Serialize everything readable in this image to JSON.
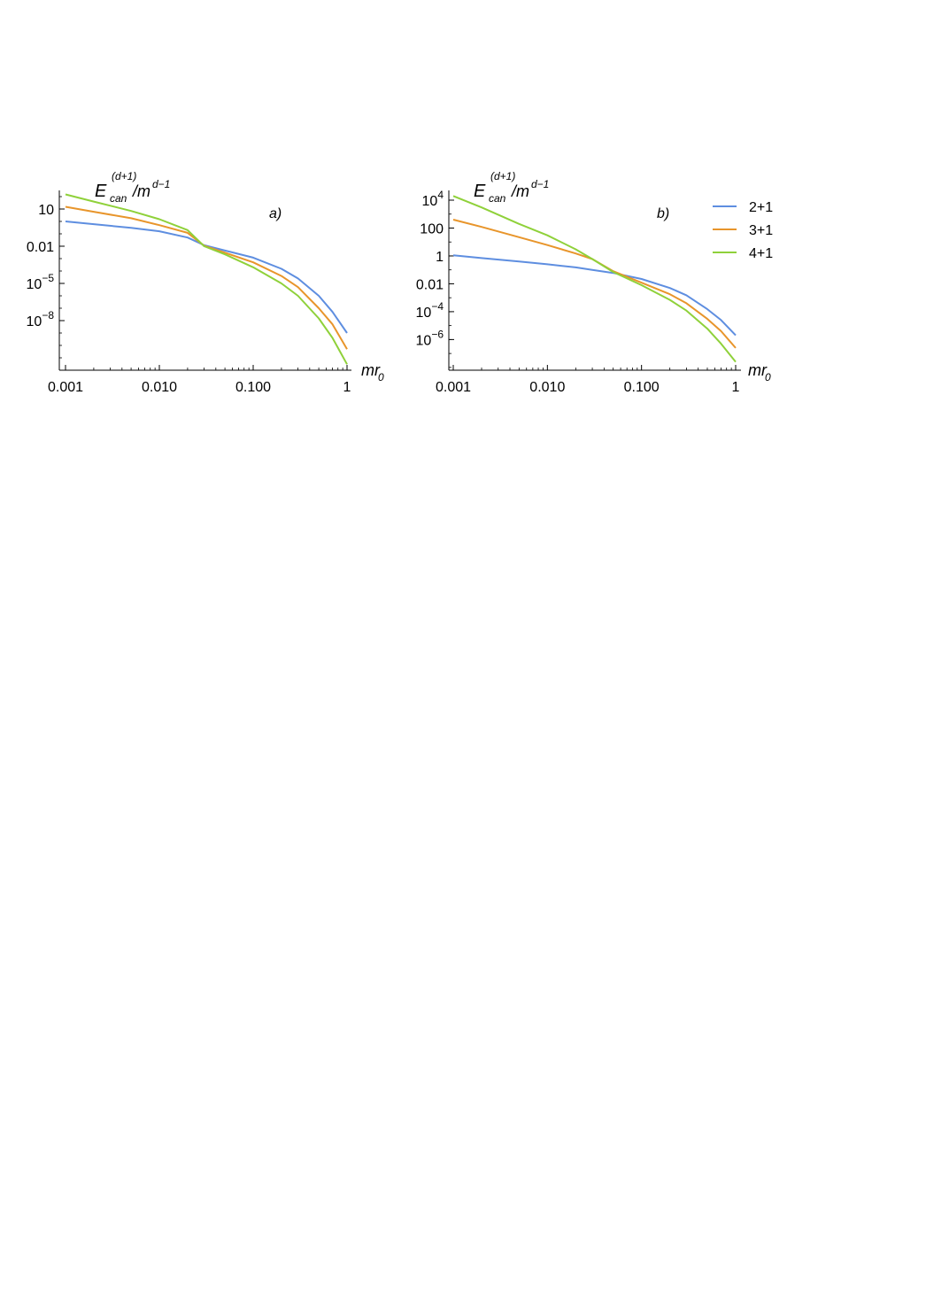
{
  "chart_data": [
    {
      "panel_label": "a)",
      "type": "line",
      "x_scale": "log",
      "y_scale": "log",
      "xlim": [
        0.001,
        1
      ],
      "ylim_exp": [
        -12,
        2.5
      ],
      "xlabel": {
        "main": "mr",
        "sub": "0"
      },
      "ylabel": {
        "main": "E",
        "sup": "(d+1)",
        "sub": "can",
        "rest": "/m",
        "rest_sup": "d−1"
      },
      "x_ticks": [
        {
          "label": "0.001",
          "value": 0.001
        },
        {
          "label": "0.010",
          "value": 0.01
        },
        {
          "label": "0.100",
          "value": 0.1
        },
        {
          "label": "1",
          "value": 1
        }
      ],
      "y_ticks": [
        {
          "value": 10,
          "base": "10",
          "exp": ""
        },
        {
          "value": 0.01,
          "base": "0.01",
          "exp": ""
        },
        {
          "value": 1e-05,
          "base": "10",
          "exp": "−5"
        },
        {
          "value": 1e-08,
          "base": "10",
          "exp": "−8"
        }
      ],
      "series": [
        {
          "name": "2+1",
          "color": "#5e8ee0",
          "x": [
            0.001,
            0.002,
            0.005,
            0.01,
            0.02,
            0.03,
            0.05,
            0.1,
            0.2,
            0.3,
            0.5,
            0.7,
            1.0
          ],
          "y": [
            1.0,
            0.6,
            0.3,
            0.16,
            0.05,
            0.012,
            0.0045,
            0.0012,
            0.00015,
            2.5e-05,
            1e-06,
            5e-08,
            1e-09
          ]
        },
        {
          "name": "3+1",
          "color": "#e8952b",
          "x": [
            0.001,
            0.002,
            0.005,
            0.01,
            0.02,
            0.03,
            0.05,
            0.1,
            0.2,
            0.3,
            0.5,
            0.7,
            1.0
          ],
          "y": [
            15,
            6,
            1.8,
            0.5,
            0.12,
            0.011,
            0.003,
            0.0005,
            4e-05,
            5e-06,
            1e-07,
            5e-09,
            5e-11
          ]
        },
        {
          "name": "4+1",
          "color": "#8fd13a",
          "x": [
            0.001,
            0.002,
            0.005,
            0.01,
            0.02,
            0.03,
            0.05,
            0.1,
            0.2,
            0.3,
            0.5,
            0.7,
            1.0
          ],
          "y": [
            150,
            40,
            7,
            1.5,
            0.2,
            0.01,
            0.0022,
            0.0002,
            1e-05,
            1e-06,
            1.5e-08,
            4e-10,
            3e-12
          ]
        }
      ]
    },
    {
      "panel_label": "b)",
      "type": "line",
      "x_scale": "log",
      "y_scale": "log",
      "xlim": [
        0.001,
        1
      ],
      "ylim_exp": [
        -8.2,
        4.7
      ],
      "xlabel": {
        "main": "mr",
        "sub": "0"
      },
      "ylabel": {
        "main": "E",
        "sup": "(d+1)",
        "sub": "can",
        "rest": "/m",
        "rest_sup": "d−1"
      },
      "x_ticks": [
        {
          "label": "0.001",
          "value": 0.001
        },
        {
          "label": "0.010",
          "value": 0.01
        },
        {
          "label": "0.100",
          "value": 0.1
        },
        {
          "label": "1",
          "value": 1
        }
      ],
      "y_ticks": [
        {
          "value": 10000,
          "base": "10",
          "exp": "4"
        },
        {
          "value": 100,
          "base": "100",
          "exp": ""
        },
        {
          "value": 1,
          "base": "1",
          "exp": ""
        },
        {
          "value": 0.01,
          "base": "0.01",
          "exp": ""
        },
        {
          "value": 0.0001,
          "base": "10",
          "exp": "−4"
        },
        {
          "value": 1e-06,
          "base": "10",
          "exp": "−6"
        }
      ],
      "series": [
        {
          "name": "2+1",
          "color": "#5e8ee0",
          "x": [
            0.001,
            0.002,
            0.005,
            0.01,
            0.02,
            0.03,
            0.05,
            0.1,
            0.2,
            0.3,
            0.5,
            0.7,
            1.0
          ],
          "y": [
            1.1,
            0.7,
            0.4,
            0.25,
            0.15,
            0.1,
            0.06,
            0.022,
            0.005,
            0.0015,
            0.00015,
            2.5e-05,
            2e-06
          ]
        },
        {
          "name": "3+1",
          "color": "#e8952b",
          "x": [
            0.001,
            0.002,
            0.005,
            0.01,
            0.02,
            0.03,
            0.05,
            0.1,
            0.2,
            0.3,
            0.5,
            0.7,
            1.0
          ],
          "y": [
            400,
            120,
            22,
            6,
            1.5,
            0.6,
            0.08,
            0.012,
            0.0018,
            0.0004,
            3e-05,
            4e-06,
            2.5e-07
          ]
        },
        {
          "name": "4+1",
          "color": "#8fd13a",
          "x": [
            0.001,
            0.002,
            0.005,
            0.01,
            0.02,
            0.03,
            0.05,
            0.1,
            0.2,
            0.3,
            0.5,
            0.7,
            1.0
          ],
          "y": [
            20000,
            3000,
            200,
            30,
            3,
            0.6,
            0.07,
            0.008,
            0.0007,
            0.00012,
            6e-06,
            5e-07,
            2.5e-08
          ]
        }
      ]
    }
  ],
  "legend": {
    "placement": "top-right",
    "items": [
      {
        "label": "2+1",
        "color": "#5e8ee0"
      },
      {
        "label": "3+1",
        "color": "#e8952b"
      },
      {
        "label": "4+1",
        "color": "#8fd13a"
      }
    ]
  }
}
